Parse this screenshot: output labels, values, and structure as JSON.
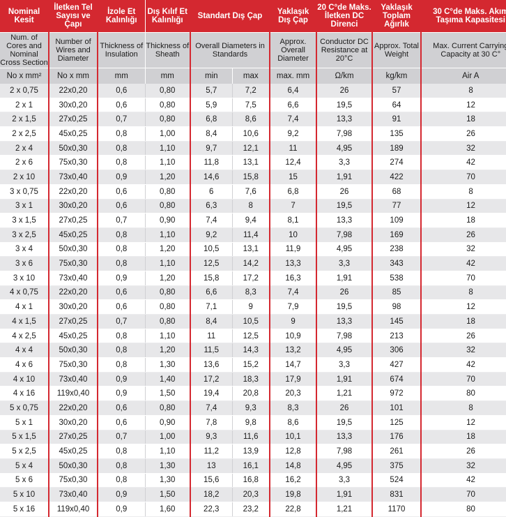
{
  "headers_tr": [
    "Nominal Kesit",
    "İletken Tel Sayısı ve Çapı",
    "İzole Et Kalınlığı",
    "Dış Kılıf Et Kalınlığı",
    "Standart Dış Çap",
    "Yaklaşık Dış Çap",
    "20 C°de Maks. İletken DC Direnci",
    "Yaklaşık Toplam Ağırlık",
    "30 C°de Maks. Akım Taşıma Kapasitesi"
  ],
  "headers_en": [
    "Num. of Cores and Nominal Cross Section",
    "Number of Wires and Diameter",
    "Thickness of Insulation",
    "Thickness of Sheath",
    "Overall Diameters in Standards",
    "Approx. Overall Diameter",
    "Conductor DC Resistance at 20°C",
    "Approx. Total Weight",
    "Max. Current Carrying Capacity at 30 C°"
  ],
  "units": [
    "No x mm²",
    "No x mm",
    "mm",
    "mm",
    "min",
    "max",
    "max. mm",
    "Ω/km",
    "kg/km",
    "Air A"
  ],
  "rows": [
    [
      "2 x 0,75",
      "22x0,20",
      "0,6",
      "0,80",
      "5,7",
      "7,2",
      "6,4",
      "26",
      "57",
      "8"
    ],
    [
      "2 x 1",
      "30x0,20",
      "0,6",
      "0,80",
      "5,9",
      "7,5",
      "6,6",
      "19,5",
      "64",
      "12"
    ],
    [
      "2 x 1,5",
      "27x0,25",
      "0,7",
      "0,80",
      "6,8",
      "8,6",
      "7,4",
      "13,3",
      "91",
      "18"
    ],
    [
      "2 x 2,5",
      "45x0,25",
      "0,8",
      "1,00",
      "8,4",
      "10,6",
      "9,2",
      "7,98",
      "135",
      "26"
    ],
    [
      "2 x 4",
      "50x0,30",
      "0,8",
      "1,10",
      "9,7",
      "12,1",
      "11",
      "4,95",
      "189",
      "32"
    ],
    [
      "2 x 6",
      "75x0,30",
      "0,8",
      "1,10",
      "11,8",
      "13,1",
      "12,4",
      "3,3",
      "274",
      "42"
    ],
    [
      "2 x 10",
      "73x0,40",
      "0,9",
      "1,20",
      "14,6",
      "15,8",
      "15",
      "1,91",
      "422",
      "70"
    ],
    [
      "3 x 0,75",
      "22x0,20",
      "0,6",
      "0,80",
      "6",
      "7,6",
      "6,8",
      "26",
      "68",
      "8"
    ],
    [
      "3 x 1",
      "30x0,20",
      "0,6",
      "0,80",
      "6,3",
      "8",
      "7",
      "19,5",
      "77",
      "12"
    ],
    [
      "3 x 1,5",
      "27x0,25",
      "0,7",
      "0,90",
      "7,4",
      "9,4",
      "8,1",
      "13,3",
      "109",
      "18"
    ],
    [
      "3 x 2,5",
      "45x0,25",
      "0,8",
      "1,10",
      "9,2",
      "11,4",
      "10",
      "7,98",
      "169",
      "26"
    ],
    [
      "3 x 4",
      "50x0,30",
      "0,8",
      "1,20",
      "10,5",
      "13,1",
      "11,9",
      "4,95",
      "238",
      "32"
    ],
    [
      "3 x 6",
      "75x0,30",
      "0,8",
      "1,10",
      "12,5",
      "14,2",
      "13,3",
      "3,3",
      "343",
      "42"
    ],
    [
      "3 x 10",
      "73x0,40",
      "0,9",
      "1,20",
      "15,8",
      "17,2",
      "16,3",
      "1,91",
      "538",
      "70"
    ],
    [
      "4 x 0,75",
      "22x0,20",
      "0,6",
      "0,80",
      "6,6",
      "8,3",
      "7,4",
      "26",
      "85",
      "8"
    ],
    [
      "4 x 1",
      "30x0,20",
      "0,6",
      "0,80",
      "7,1",
      "9",
      "7,9",
      "19,5",
      "98",
      "12"
    ],
    [
      "4 x 1,5",
      "27x0,25",
      "0,7",
      "0,80",
      "8,4",
      "10,5",
      "9",
      "13,3",
      "145",
      "18"
    ],
    [
      "4 x 2,5",
      "45x0,25",
      "0,8",
      "1,10",
      "11",
      "12,5",
      "10,9",
      "7,98",
      "213",
      "26"
    ],
    [
      "4 x 4",
      "50x0,30",
      "0,8",
      "1,20",
      "11,5",
      "14,3",
      "13,2",
      "4,95",
      "306",
      "32"
    ],
    [
      "4 x 6",
      "75x0,30",
      "0,8",
      "1,30",
      "13,6",
      "15,2",
      "14,7",
      "3,3",
      "427",
      "42"
    ],
    [
      "4 x 10",
      "73x0,40",
      "0,9",
      "1,40",
      "17,2",
      "18,3",
      "17,9",
      "1,91",
      "674",
      "70"
    ],
    [
      "4 x 16",
      "119x0,40",
      "0,9",
      "1,50",
      "19,4",
      "20,8",
      "20,3",
      "1,21",
      "972",
      "80"
    ],
    [
      "5 x 0,75",
      "22x0,20",
      "0,6",
      "0,80",
      "7,4",
      "9,3",
      "8,3",
      "26",
      "101",
      "8"
    ],
    [
      "5 x 1",
      "30x0,20",
      "0,6",
      "0,90",
      "7,8",
      "9,8",
      "8,6",
      "19,5",
      "125",
      "12"
    ],
    [
      "5 x 1,5",
      "27x0,25",
      "0,7",
      "1,00",
      "9,3",
      "11,6",
      "10,1",
      "13,3",
      "176",
      "18"
    ],
    [
      "5 x 2,5",
      "45x0,25",
      "0,8",
      "1,10",
      "11,2",
      "13,9",
      "12,8",
      "7,98",
      "261",
      "26"
    ],
    [
      "5 x 4",
      "50x0,30",
      "0,8",
      "1,30",
      "13",
      "16,1",
      "14,8",
      "4,95",
      "375",
      "32"
    ],
    [
      "5 x 6",
      "75x0,30",
      "0,8",
      "1,30",
      "15,6",
      "16,8",
      "16,2",
      "3,3",
      "524",
      "42"
    ],
    [
      "5 x 10",
      "73x0,40",
      "0,9",
      "1,50",
      "18,2",
      "20,3",
      "19,8",
      "1,91",
      "831",
      "70"
    ],
    [
      "5 x 16",
      "119x0,40",
      "0,9",
      "1,60",
      "22,3",
      "23,2",
      "22,8",
      "1,21",
      "1170",
      "80"
    ]
  ]
}
